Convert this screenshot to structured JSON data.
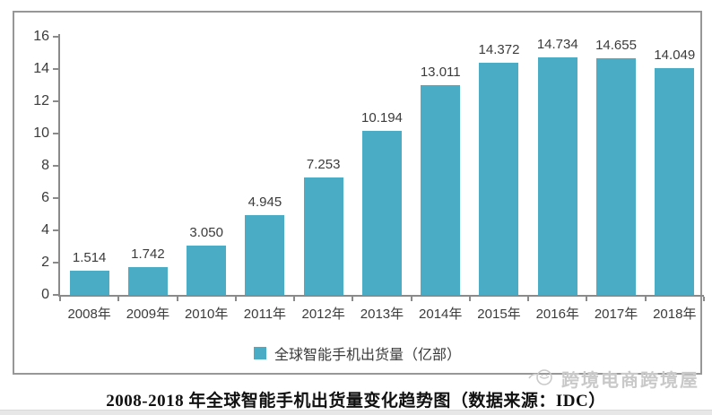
{
  "chart_data": {
    "type": "bar",
    "categories": [
      "2008年",
      "2009年",
      "2010年",
      "2011年",
      "2012年",
      "2013年",
      "2014年",
      "2015年",
      "2016年",
      "2017年",
      "2018年"
    ],
    "values": [
      1.514,
      1.742,
      3.05,
      4.945,
      7.253,
      10.194,
      13.011,
      14.372,
      14.734,
      14.655,
      14.049
    ],
    "value_labels": [
      "1.514",
      "1.742",
      "3.050",
      "4.945",
      "7.253",
      "10.194",
      "13.011",
      "14.372",
      "14.734",
      "14.655",
      "14.049"
    ],
    "legend": "全球智能手机出货量（亿部）",
    "legend_position": "bottom",
    "title": "",
    "xlabel": "",
    "ylabel": "",
    "ylim": [
      0,
      16
    ],
    "yticks": [
      0,
      2,
      4,
      6,
      8,
      10,
      12,
      14,
      16
    ],
    "grid": false,
    "bar_color": "#4BACC6"
  },
  "caption": {
    "text": "2008-2018 年全球智能手机出货量变化趋势图（数据来源：IDC）"
  },
  "watermark": {
    "text": "跨境电商跨境屋"
  }
}
